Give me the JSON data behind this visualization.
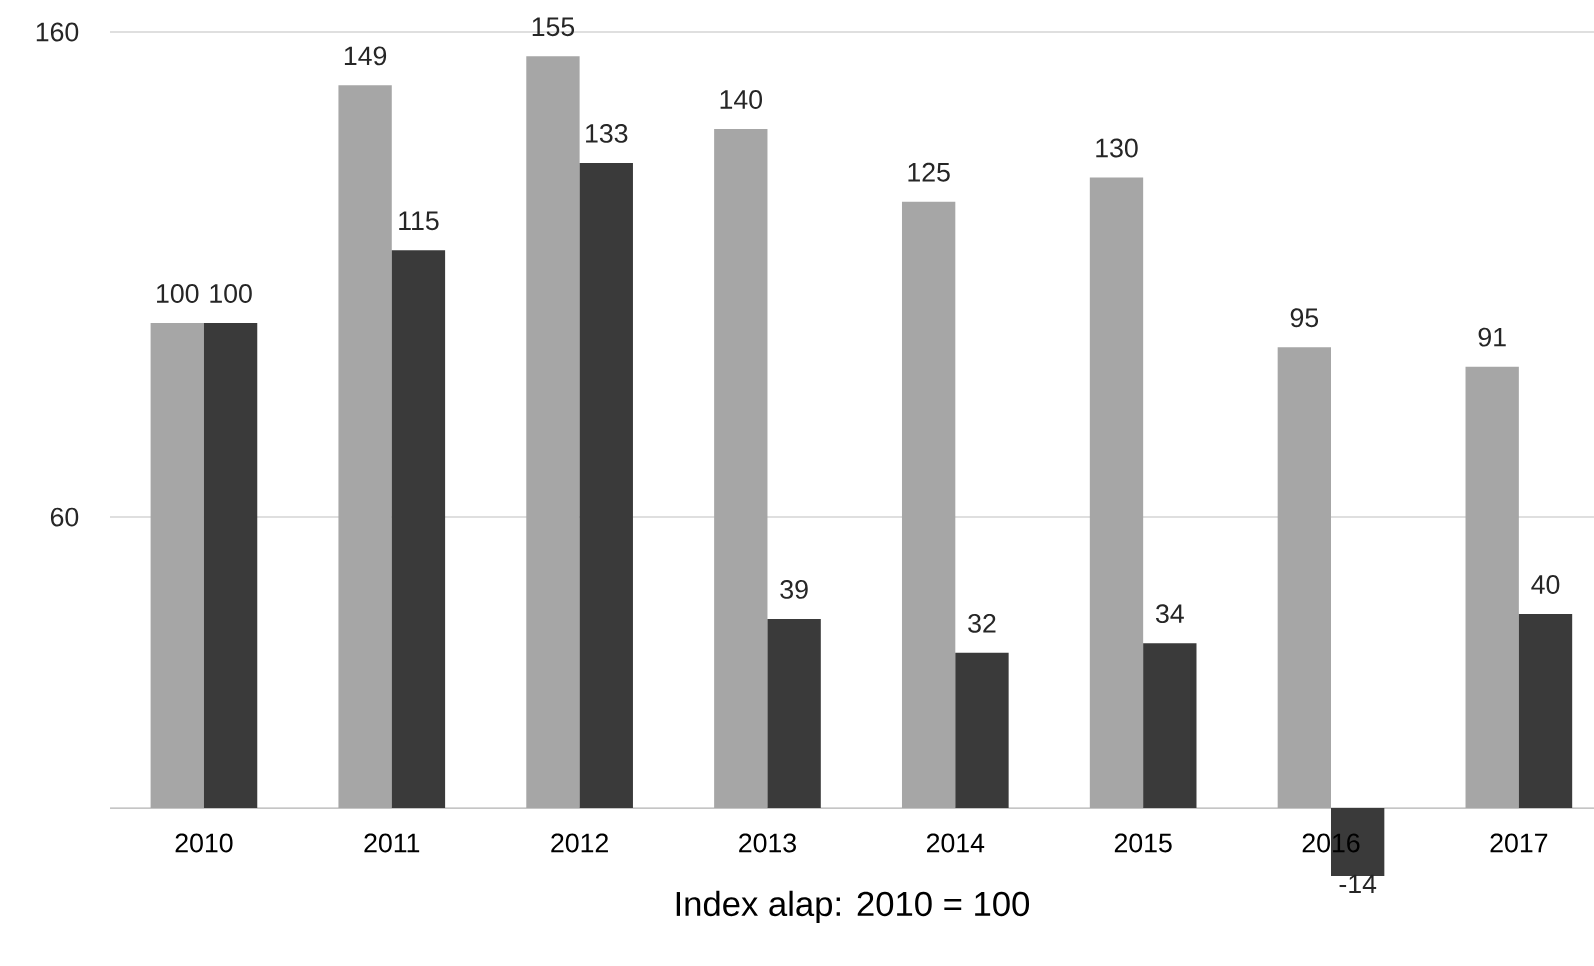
{
  "chart_data": {
    "type": "bar",
    "xlabel": "Index alap: 2010 = 100",
    "categories": [
      "2010",
      "2011",
      "2012",
      "2013",
      "2014",
      "2015",
      "2016",
      "2017"
    ],
    "series": [
      {
        "color": "#a6a6a6",
        "values": [
          100,
          149,
          155,
          140,
          125,
          130,
          95,
          91
        ]
      },
      {
        "color": "#3a3a3a",
        "values": [
          100,
          115,
          133,
          39,
          32,
          34,
          -14,
          40
        ]
      }
    ],
    "ylim": [
      -14,
      160
    ],
    "yticks": [
      60,
      160
    ],
    "grid": "y",
    "data_labels": true
  }
}
